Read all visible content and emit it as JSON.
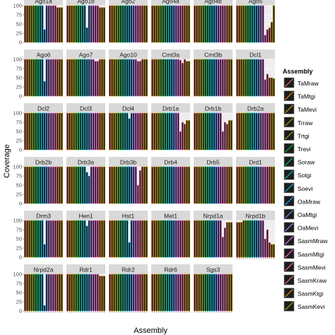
{
  "chart_data": {
    "type": "bar",
    "facet_layout": "wrap",
    "ylabel": "Coverage",
    "xlabel": "Assembly",
    "ylim": [
      0,
      100
    ],
    "yticks": [
      0,
      25,
      50,
      75,
      100
    ],
    "grid": true,
    "legend": {
      "title": "Assembly",
      "placement": "right"
    },
    "series": [
      {
        "name": "TaMraw",
        "color": "#f8766d"
      },
      {
        "name": "TaMtgi",
        "color": "#e58700"
      },
      {
        "name": "TaMevi",
        "color": "#c99800"
      },
      {
        "name": "Trraw",
        "color": "#a3a500"
      },
      {
        "name": "Trtgi",
        "color": "#6bb100"
      },
      {
        "name": "Trevi",
        "color": "#00ba38"
      },
      {
        "name": "Soraw",
        "color": "#00bf7d"
      },
      {
        "name": "Sotgi",
        "color": "#00c0af"
      },
      {
        "name": "Soevi",
        "color": "#00bcd8"
      },
      {
        "name": "OaMraw",
        "color": "#00b0f6"
      },
      {
        "name": "OaMtgi",
        "color": "#619cff"
      },
      {
        "name": "OaMevi",
        "color": "#b983ff"
      },
      {
        "name": "SasmMraw",
        "color": "#e76bf3"
      },
      {
        "name": "SasmMtgi",
        "color": "#fd61d1"
      },
      {
        "name": "SasmMevi",
        "color": "#ff67a4"
      },
      {
        "name": "SasmKraw",
        "color": "#f4766e"
      },
      {
        "name": "SasmKtgi",
        "color": "#d98c00"
      },
      {
        "name": "SasmKevi",
        "color": "#b4a000"
      }
    ],
    "panels": [
      {
        "title": "Ago1a",
        "values": [
          100,
          100,
          100,
          100,
          100,
          100,
          100,
          100,
          100,
          35,
          100,
          100,
          100,
          100,
          100,
          95,
          95,
          95
        ]
      },
      {
        "title": "Ago1b",
        "values": [
          100,
          100,
          100,
          100,
          100,
          100,
          100,
          100,
          100,
          40,
          100,
          100,
          100,
          100,
          100,
          95,
          95,
          95
        ]
      },
      {
        "title": "Ago2",
        "values": [
          100,
          100,
          100,
          100,
          100,
          100,
          100,
          100,
          100,
          100,
          100,
          100,
          100,
          100,
          100,
          100,
          100,
          100
        ]
      },
      {
        "title": "Ago4a",
        "values": [
          100,
          100,
          100,
          100,
          100,
          100,
          100,
          100,
          100,
          100,
          100,
          100,
          100,
          100,
          100,
          100,
          100,
          100
        ]
      },
      {
        "title": "Ago4b",
        "values": [
          100,
          100,
          100,
          100,
          100,
          100,
          100,
          100,
          100,
          100,
          100,
          100,
          100,
          100,
          100,
          100,
          100,
          100
        ]
      },
      {
        "title": "Ago5",
        "values": [
          100,
          100,
          100,
          100,
          100,
          100,
          100,
          100,
          100,
          100,
          100,
          100,
          100,
          20,
          35,
          40,
          55,
          100
        ]
      },
      {
        "title": "Ago6",
        "values": [
          100,
          100,
          100,
          100,
          100,
          100,
          100,
          100,
          100,
          40,
          100,
          100,
          100,
          100,
          100,
          100,
          100,
          100
        ]
      },
      {
        "title": "Ago7",
        "values": [
          100,
          100,
          100,
          100,
          100,
          100,
          100,
          100,
          100,
          100,
          100,
          100,
          100,
          95,
          95,
          100,
          100,
          100
        ]
      },
      {
        "title": "Ago10",
        "values": [
          100,
          100,
          100,
          100,
          100,
          100,
          100,
          100,
          100,
          100,
          100,
          100,
          100,
          95,
          95,
          100,
          100,
          100
        ]
      },
      {
        "title": "Cmt3a",
        "values": [
          100,
          100,
          100,
          100,
          100,
          100,
          100,
          100,
          100,
          100,
          100,
          100,
          100,
          98,
          90,
          100,
          95,
          95
        ]
      },
      {
        "title": "Cmt3b",
        "values": [
          100,
          100,
          100,
          100,
          100,
          100,
          100,
          100,
          100,
          100,
          100,
          100,
          100,
          100,
          100,
          100,
          100,
          100
        ]
      },
      {
        "title": "Dcl1",
        "values": [
          100,
          100,
          100,
          100,
          100,
          100,
          100,
          100,
          100,
          100,
          100,
          100,
          100,
          45,
          60,
          50,
          50,
          48
        ]
      },
      {
        "title": "Dcl2",
        "values": [
          100,
          100,
          100,
          100,
          100,
          100,
          100,
          100,
          100,
          100,
          100,
          100,
          100,
          100,
          100,
          100,
          100,
          100
        ]
      },
      {
        "title": "Dcl3",
        "values": [
          100,
          100,
          100,
          100,
          100,
          100,
          100,
          100,
          100,
          100,
          100,
          100,
          100,
          100,
          100,
          100,
          100,
          100
        ]
      },
      {
        "title": "Dcl4",
        "values": [
          100,
          100,
          100,
          100,
          100,
          100,
          100,
          100,
          100,
          85,
          100,
          100,
          100,
          100,
          100,
          100,
          100,
          100
        ]
      },
      {
        "title": "Drb1a",
        "values": [
          100,
          100,
          100,
          100,
          100,
          100,
          100,
          100,
          100,
          100,
          100,
          100,
          100,
          50,
          75,
          70,
          80,
          80
        ]
      },
      {
        "title": "Drb1b",
        "values": [
          100,
          100,
          100,
          100,
          100,
          100,
          100,
          100,
          100,
          100,
          100,
          100,
          100,
          50,
          75,
          70,
          80,
          80
        ]
      },
      {
        "title": "Drb2a",
        "values": [
          100,
          100,
          100,
          100,
          100,
          100,
          100,
          100,
          100,
          100,
          100,
          100,
          100,
          100,
          100,
          100,
          100,
          100
        ]
      },
      {
        "title": "Drb2b",
        "values": [
          100,
          100,
          100,
          100,
          100,
          100,
          100,
          100,
          100,
          100,
          100,
          100,
          100,
          100,
          100,
          100,
          100,
          100
        ]
      },
      {
        "title": "Drb3a",
        "values": [
          100,
          100,
          100,
          100,
          100,
          100,
          100,
          100,
          100,
          85,
          75,
          100,
          100,
          100,
          100,
          100,
          100,
          100
        ]
      },
      {
        "title": "Drb3b",
        "values": [
          100,
          100,
          100,
          100,
          100,
          100,
          100,
          100,
          100,
          100,
          100,
          100,
          100,
          50,
          90,
          100,
          100,
          100
        ]
      },
      {
        "title": "Drb4",
        "values": [
          100,
          100,
          100,
          100,
          100,
          100,
          100,
          100,
          100,
          100,
          100,
          100,
          100,
          100,
          100,
          100,
          100,
          100
        ]
      },
      {
        "title": "Drb5",
        "values": [
          100,
          100,
          100,
          100,
          100,
          100,
          100,
          100,
          100,
          100,
          100,
          100,
          100,
          100,
          100,
          100,
          100,
          100
        ]
      },
      {
        "title": "Drd1",
        "values": [
          100,
          100,
          100,
          100,
          100,
          100,
          100,
          100,
          100,
          100,
          100,
          100,
          100,
          100,
          100,
          100,
          100,
          100
        ]
      },
      {
        "title": "Drm3",
        "values": [
          100,
          100,
          100,
          100,
          100,
          100,
          100,
          100,
          100,
          35,
          100,
          100,
          100,
          100,
          100,
          100,
          100,
          100
        ]
      },
      {
        "title": "Hen1",
        "values": [
          100,
          100,
          100,
          100,
          100,
          100,
          100,
          100,
          100,
          85,
          100,
          100,
          100,
          100,
          100,
          100,
          100,
          100
        ]
      },
      {
        "title": "Hst1",
        "values": [
          100,
          100,
          100,
          100,
          100,
          100,
          100,
          100,
          100,
          40,
          100,
          100,
          100,
          100,
          100,
          100,
          100,
          100
        ]
      },
      {
        "title": "Met1",
        "values": [
          100,
          100,
          100,
          100,
          100,
          100,
          100,
          100,
          100,
          100,
          100,
          100,
          100,
          100,
          100,
          100,
          100,
          100
        ]
      },
      {
        "title": "Nrpd1a",
        "values": [
          100,
          100,
          100,
          100,
          100,
          100,
          100,
          100,
          100,
          100,
          100,
          100,
          100,
          55,
          80,
          95,
          95,
          95
        ]
      },
      {
        "title": "Nrpd1b",
        "values": [
          95,
          95,
          95,
          100,
          100,
          100,
          100,
          100,
          100,
          100,
          100,
          100,
          100,
          50,
          75,
          40,
          35,
          35
        ]
      },
      {
        "title": "Nrpd2a",
        "values": [
          100,
          100,
          100,
          100,
          100,
          100,
          100,
          100,
          100,
          15,
          100,
          100,
          100,
          100,
          100,
          100,
          100,
          100
        ]
      },
      {
        "title": "Rdr1",
        "values": [
          100,
          100,
          100,
          100,
          100,
          100,
          100,
          100,
          100,
          100,
          100,
          100,
          100,
          100,
          100,
          95,
          95,
          95
        ]
      },
      {
        "title": "Rdr2",
        "values": [
          100,
          100,
          100,
          100,
          100,
          100,
          100,
          100,
          100,
          100,
          100,
          100,
          100,
          100,
          100,
          100,
          100,
          100
        ]
      },
      {
        "title": "Rdr6",
        "values": [
          100,
          100,
          100,
          100,
          100,
          100,
          100,
          100,
          100,
          100,
          100,
          100,
          100,
          100,
          100,
          100,
          100,
          100
        ]
      },
      {
        "title": "Sgs3",
        "values": [
          100,
          100,
          100,
          100,
          100,
          100,
          100,
          100,
          100,
          100,
          100,
          100,
          100,
          100,
          100,
          100,
          100,
          100
        ]
      }
    ]
  }
}
